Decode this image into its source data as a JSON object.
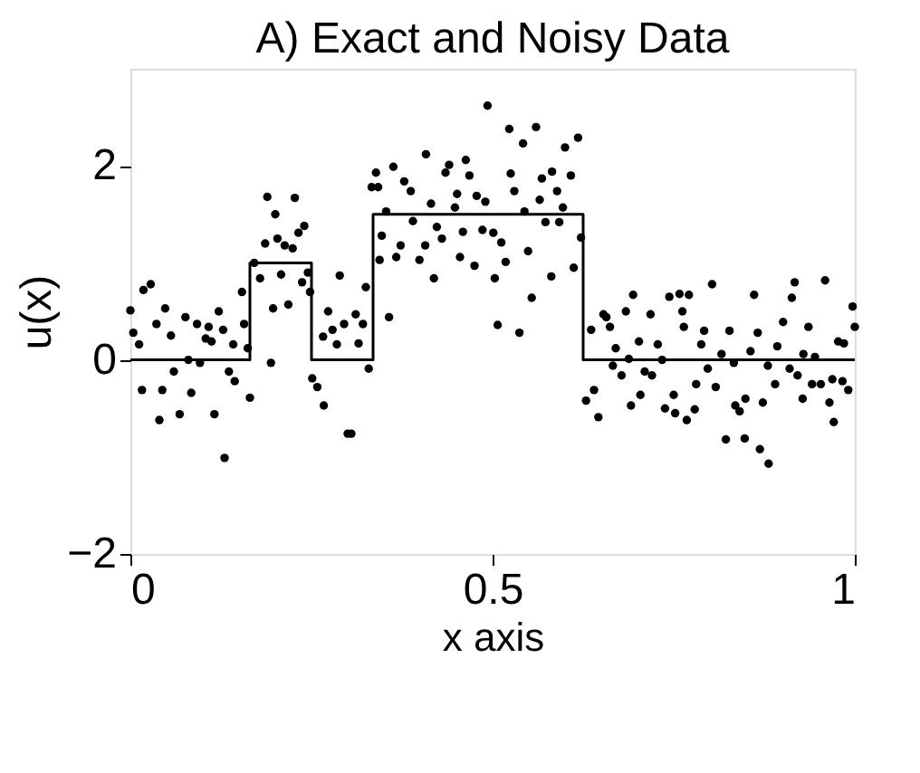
{
  "chart_data": {
    "type": "scatter",
    "title": "A) Exact and Noisy Data",
    "xlabel": "x axis",
    "ylabel": "u(x)",
    "xlim": [
      0,
      1
    ],
    "ylim": [
      -2,
      3
    ],
    "xticks": [
      0,
      0.5,
      1
    ],
    "yticks": [
      -2,
      0,
      2
    ],
    "grid": false,
    "series": [
      {
        "marker": "circle",
        "color": "#000000",
        "x": [
          0.0,
          0.004,
          0.012,
          0.018,
          0.028,
          0.016,
          0.036,
          0.048,
          0.056,
          0.04,
          0.044,
          0.06,
          0.068,
          0.076,
          0.08,
          0.084,
          0.092,
          0.096,
          0.104,
          0.108,
          0.112,
          0.116,
          0.122,
          0.128,
          0.13,
          0.136,
          0.144,
          0.142,
          0.154,
          0.157,
          0.162,
          0.165,
          0.171,
          0.179,
          0.186,
          0.189,
          0.2,
          0.194,
          0.197,
          0.203,
          0.208,
          0.213,
          0.218,
          0.224,
          0.227,
          0.232,
          0.24,
          0.237,
          0.245,
          0.248,
          0.251,
          0.258,
          0.266,
          0.267,
          0.273,
          0.279,
          0.285,
          0.289,
          0.295,
          0.3,
          0.305,
          0.311,
          0.315,
          0.321,
          0.325,
          0.333,
          0.329,
          0.357,
          0.342,
          0.339,
          0.347,
          0.344,
          0.353,
          0.363,
          0.367,
          0.373,
          0.378,
          0.387,
          0.39,
          0.399,
          0.407,
          0.408,
          0.415,
          0.419,
          0.423,
          0.43,
          0.435,
          0.44,
          0.451,
          0.448,
          0.455,
          0.459,
          0.463,
          0.468,
          0.475,
          0.478,
          0.49,
          0.486,
          0.493,
          0.501,
          0.503,
          0.507,
          0.512,
          0.518,
          0.523,
          0.525,
          0.53,
          0.537,
          0.542,
          0.544,
          0.549,
          0.554,
          0.56,
          0.565,
          0.568,
          0.573,
          0.581,
          0.582,
          0.589,
          0.592,
          0.597,
          0.6,
          0.608,
          0.612,
          0.618,
          0.622,
          0.629,
          0.636,
          0.64,
          0.646,
          0.653,
          0.657,
          0.662,
          0.67,
          0.666,
          0.678,
          0.684,
          0.688,
          0.694,
          0.691,
          0.704,
          0.71,
          0.702,
          0.718,
          0.72,
          0.728,
          0.734,
          0.738,
          0.744,
          0.752,
          0.75,
          0.758,
          0.762,
          0.764,
          0.771,
          0.768,
          0.779,
          0.781,
          0.788,
          0.792,
          0.797,
          0.803,
          0.808,
          0.816,
          0.822,
          0.827,
          0.833,
          0.835,
          0.841,
          0.848,
          0.849,
          0.856,
          0.861,
          0.866,
          0.869,
          0.873,
          0.881,
          0.88,
          0.89,
          0.893,
          0.901,
          0.91,
          0.913,
          0.917,
          0.921,
          0.928,
          0.929,
          0.936,
          0.941,
          0.945,
          0.953,
          0.959,
          0.965,
          0.971,
          0.969,
          0.977,
          0.985,
          0.983,
          0.991,
          0.997,
          1.0
        ],
        "values": [
          0.51,
          0.28,
          0.16,
          0.72,
          0.78,
          -0.31,
          0.37,
          0.53,
          0.25,
          -0.62,
          -0.31,
          -0.12,
          -0.56,
          0.44,
          0.0,
          -0.34,
          0.37,
          -0.03,
          0.22,
          0.34,
          0.19,
          -0.56,
          0.5,
          0.31,
          -1.01,
          -0.12,
          -0.22,
          0.16,
          0.7,
          0.37,
          0.12,
          -0.39,
          1.0,
          0.84,
          1.2,
          1.68,
          1.5,
          -0.03,
          0.53,
          1.25,
          0.88,
          1.18,
          0.57,
          1.15,
          1.67,
          1.31,
          1.38,
          0.8,
          0.9,
          0.7,
          -0.19,
          -0.28,
          0.24,
          -0.47,
          0.5,
          0.31,
          0.16,
          0.87,
          0.37,
          -0.76,
          -0.76,
          0.47,
          0.17,
          0.37,
          0.75,
          1.78,
          -0.09,
          0.44,
          1.78,
          1.93,
          1.28,
          1.03,
          1.53,
          1.99,
          1.06,
          1.18,
          1.84,
          1.74,
          1.43,
          1.03,
          1.18,
          2.12,
          1.61,
          0.84,
          1.37,
          1.25,
          1.93,
          2.01,
          1.71,
          1.57,
          1.06,
          1.32,
          2.06,
          1.9,
          0.97,
          1.69,
          1.63,
          1.34,
          2.62,
          1.31,
          0.84,
          0.36,
          1.21,
          1.01,
          2.38,
          1.92,
          1.74,
          0.28,
          2.23,
          1.53,
          1.12,
          0.64,
          2.4,
          1.65,
          1.87,
          1.42,
          0.86,
          1.94,
          1.74,
          1.42,
          1.57,
          2.19,
          1.9,
          0.95,
          2.29,
          1.26,
          -0.42,
          0.31,
          -0.31,
          -0.59,
          0.47,
          0.44,
          0.34,
          0.12,
          -0.06,
          -0.16,
          0.5,
          0.01,
          0.67,
          -0.47,
          -0.36,
          -0.12,
          0.19,
          0.47,
          -0.16,
          0.16,
          0.0,
          -0.5,
          0.65,
          -0.55,
          -0.36,
          0.68,
          0.5,
          0.34,
          0.67,
          -0.62,
          -0.51,
          -0.25,
          0.16,
          0.3,
          -0.09,
          0.78,
          -0.28,
          0.06,
          -0.82,
          0.3,
          -0.03,
          -0.47,
          -0.53,
          -0.81,
          -0.4,
          0.09,
          0.67,
          0.28,
          -0.92,
          -0.44,
          -1.07,
          -0.06,
          -0.25,
          0.14,
          0.39,
          -0.09,
          0.64,
          0.8,
          -0.16,
          -0.4,
          0.06,
          0.34,
          -0.25,
          0.03,
          -0.25,
          0.82,
          -0.44,
          -0.64,
          -0.2,
          0.19,
          0.17,
          -0.22,
          -0.31,
          0.55,
          0.34
        ]
      },
      {
        "type": "line",
        "color": "#000000",
        "line_style": "solid",
        "x": [
          0,
          0.165,
          0.165,
          0.25,
          0.25,
          0.335,
          0.335,
          0.625,
          0.625,
          1
        ],
        "values": [
          0,
          0,
          1,
          1,
          0,
          0,
          1.5,
          1.5,
          0,
          0
        ]
      }
    ]
  }
}
